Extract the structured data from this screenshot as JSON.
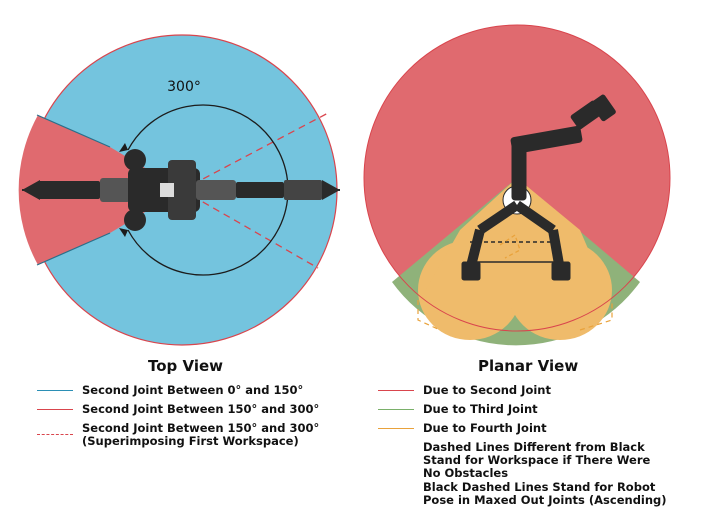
{
  "top_view": {
    "title": "Top View",
    "angle_label": "300°",
    "legend": [
      {
        "label": "Second Joint Between 0° and 150°",
        "color": "#2b8fb5",
        "style": "solid"
      },
      {
        "label": "Second Joint Between 150° and 300°",
        "color": "#d9454d",
        "style": "solid"
      },
      {
        "label": "Second Joint Between 150° and 300°",
        "label2": "(Superimposing First Workspace)",
        "color": "#d9454d",
        "style": "dashed"
      }
    ]
  },
  "planar_view": {
    "title": "Planar View",
    "legend": [
      {
        "label": "Due to Second Joint",
        "color": "#d9454d",
        "style": "solid"
      },
      {
        "label": "Due to Third Joint",
        "color": "#7ab06a",
        "style": "solid"
      },
      {
        "label": "Due to Fourth Joint",
        "color": "#e9a23b",
        "style": "solid"
      }
    ],
    "notes": [
      "Dashed Lines Different from Black",
      "Stand for Workspace if There Were",
      "No Obstacles",
      "Black Dashed Lines Stand for Robot",
      "Pose in Maxed Out Joints (Ascending)"
    ]
  },
  "colors": {
    "blue_fill": "#74c4de",
    "red_fill": "#e06a6f",
    "green_fill": "#8fb27a",
    "orange_fill": "#efbb6b",
    "robot": "#2a2a2a"
  }
}
